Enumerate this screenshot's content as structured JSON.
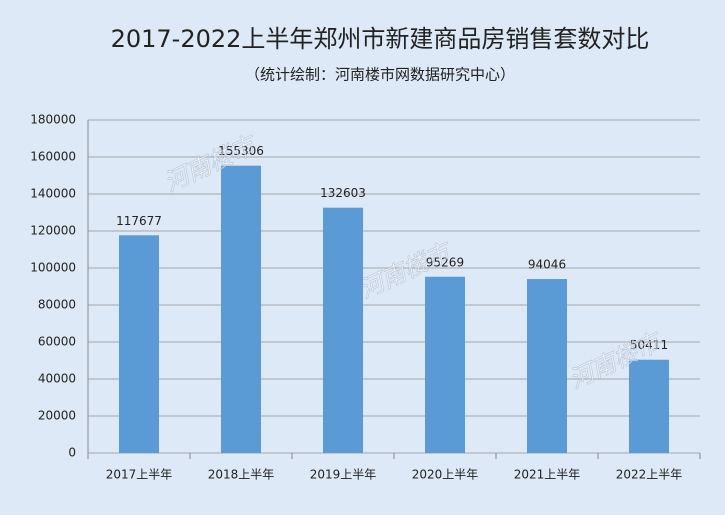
{
  "chart_data": {
    "type": "bar",
    "title": "2017-2022上半年郑州市新建商品房销售套数对比",
    "subtitle": "（统计绘制：河南楼市网数据研究中心）",
    "watermark": "河南楼市",
    "categories": [
      "2017上半年",
      "2018上半年",
      "2019上半年",
      "2020上半年",
      "2021上半年",
      "2022上半年"
    ],
    "values": [
      117677,
      155306,
      132603,
      95269,
      94046,
      50411
    ],
    "color": "#5b9bd5",
    "ylim": [
      0,
      180000
    ],
    "yticks": [
      0,
      20000,
      40000,
      60000,
      80000,
      100000,
      120000,
      140000,
      160000,
      180000
    ],
    "grid": true
  }
}
